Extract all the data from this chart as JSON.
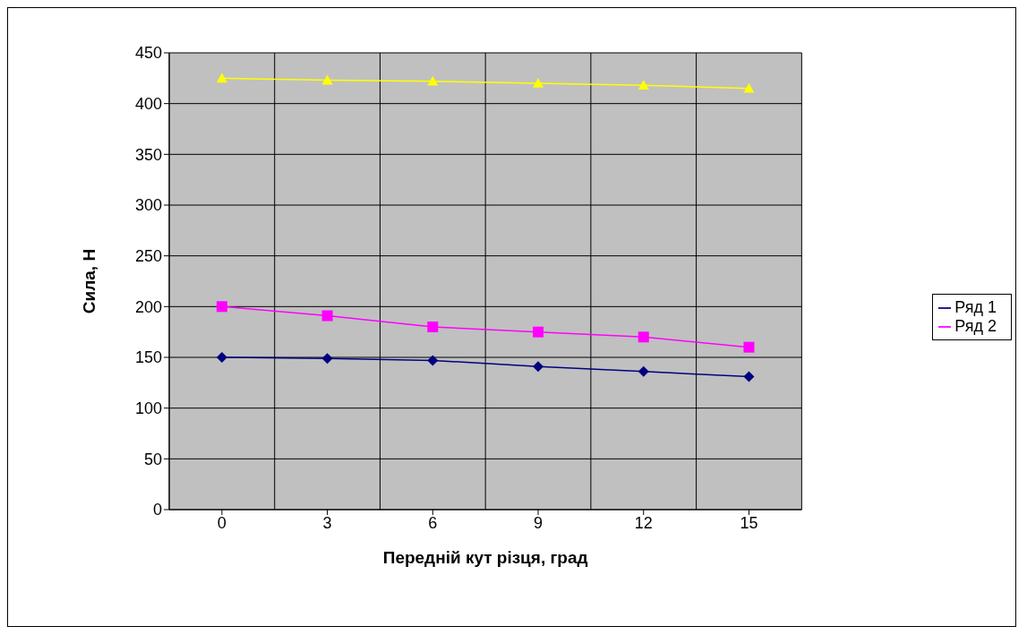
{
  "chart_data": {
    "type": "line",
    "xlabel": "Передній кут різця, град",
    "ylabel": "Сила, Н",
    "categories": [
      "0",
      "3",
      "6",
      "9",
      "12",
      "15"
    ],
    "series": [
      {
        "name": "Ряд 1",
        "color": "#000080",
        "marker": "diamond",
        "values": [
          150,
          149,
          147,
          141,
          136,
          131
        ]
      },
      {
        "name": "Ряд 2",
        "color": "#ff00ff",
        "marker": "square",
        "values": [
          200,
          191,
          180,
          175,
          170,
          160
        ]
      },
      {
        "color": "#ffff00",
        "marker": "triangle",
        "values": [
          425,
          423,
          422,
          420,
          418,
          415
        ]
      }
    ],
    "ylim": [
      0,
      450
    ],
    "yticks": [
      0,
      50,
      100,
      150,
      200,
      250,
      300,
      350,
      400,
      450
    ],
    "grid": true,
    "legend": "right"
  }
}
